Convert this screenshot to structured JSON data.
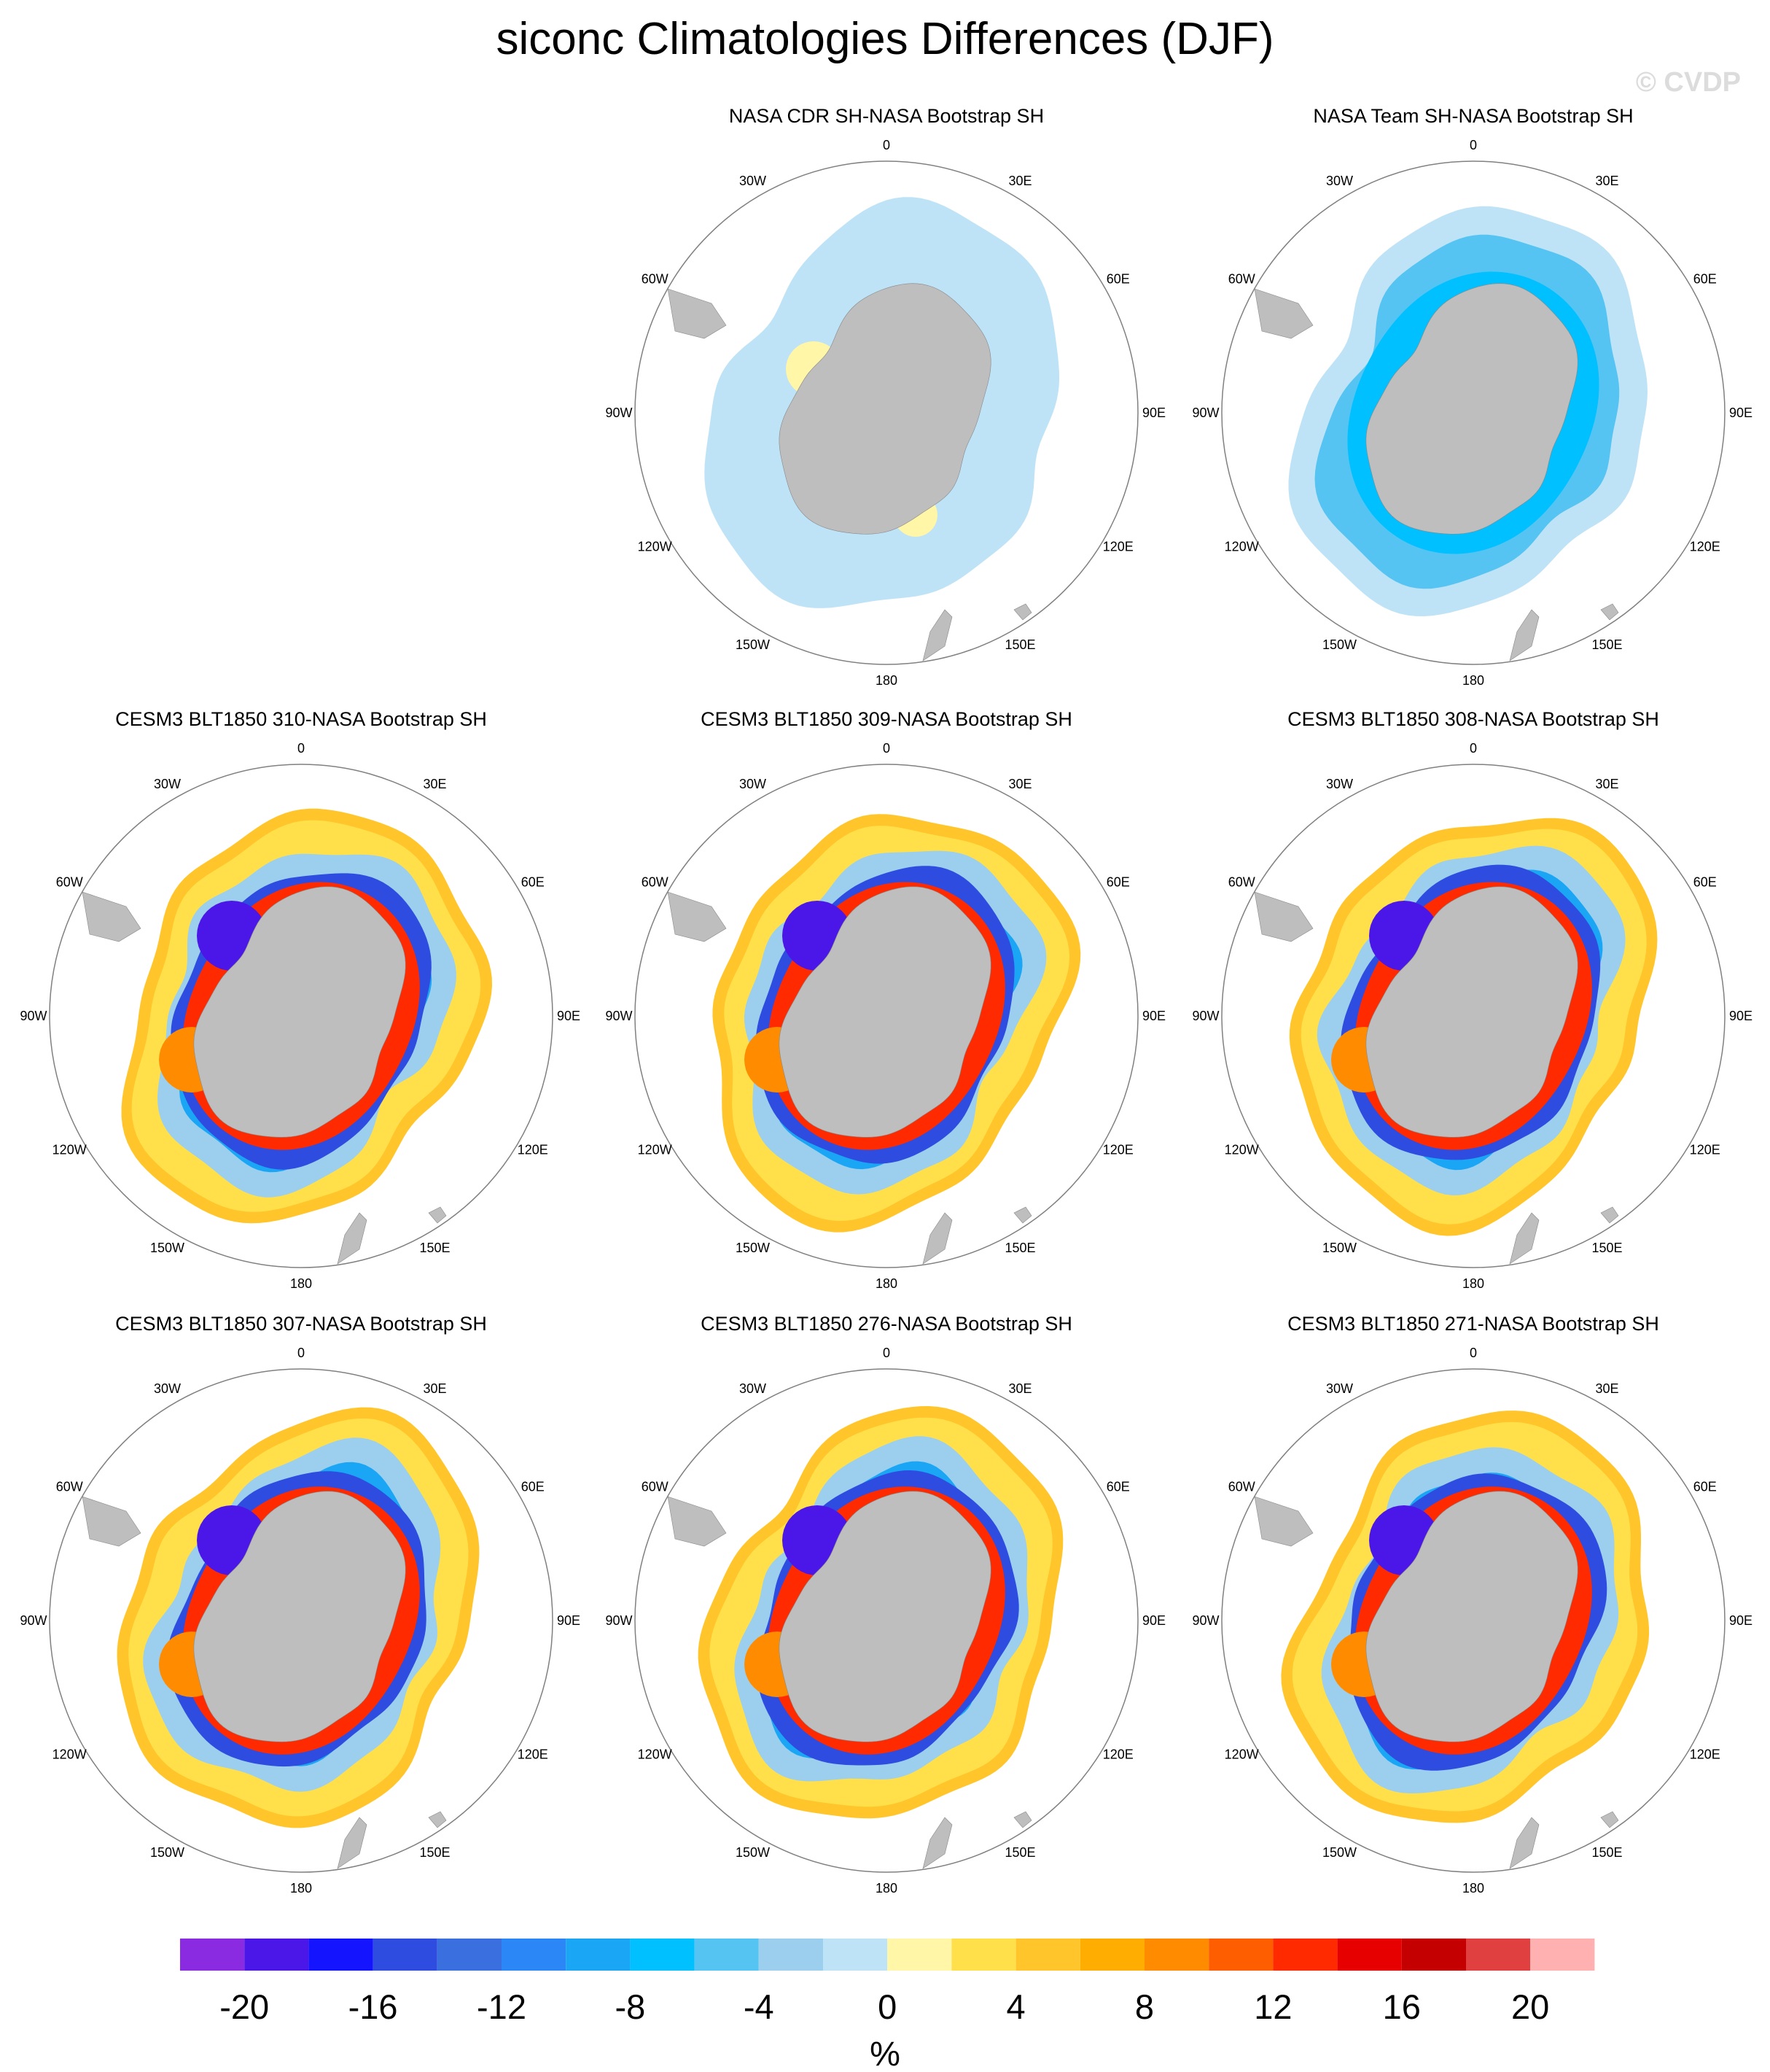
{
  "figure": {
    "title": "siconc Climatologies Differences (DJF)",
    "watermark": "© CVDP"
  },
  "longitude_labels": [
    "0",
    "30E",
    "60E",
    "90E",
    "120E",
    "150E",
    "180",
    "150W",
    "120W",
    "90W",
    "60W",
    "30W"
  ],
  "land_color": "#bebebe",
  "panels": [
    {
      "title": "NASA CDR SH-NASA Bootstrap SH",
      "row": 0,
      "col": 1,
      "pattern": "cdr"
    },
    {
      "title": "NASA Team SH-NASA Bootstrap SH",
      "row": 0,
      "col": 2,
      "pattern": "team"
    },
    {
      "title": "CESM3 BLT1850 310-NASA Bootstrap SH",
      "row": 1,
      "col": 0,
      "pattern": "model"
    },
    {
      "title": "CESM3 BLT1850 309-NASA Bootstrap SH",
      "row": 1,
      "col": 1,
      "pattern": "model"
    },
    {
      "title": "CESM3 BLT1850 308-NASA Bootstrap SH",
      "row": 1,
      "col": 2,
      "pattern": "model"
    },
    {
      "title": "CESM3 BLT1850 307-NASA Bootstrap SH",
      "row": 2,
      "col": 0,
      "pattern": "model"
    },
    {
      "title": "CESM3 BLT1850 276-NASA Bootstrap SH",
      "row": 2,
      "col": 1,
      "pattern": "model"
    },
    {
      "title": "CESM3 BLT1850 271-NASA Bootstrap SH",
      "row": 2,
      "col": 2,
      "pattern": "model"
    }
  ],
  "colorbar": {
    "colors": [
      "#8a2be2",
      "#4b17e8",
      "#1414ff",
      "#2e4de0",
      "#3a6fe0",
      "#2b87f5",
      "#1aa6f5",
      "#00c0ff",
      "#55c4f2",
      "#9ccfee",
      "#bfe3f6",
      "#fff6a8",
      "#ffe04a",
      "#ffc52a",
      "#ffad00",
      "#ff8c00",
      "#ff5e00",
      "#ff2a00",
      "#e60000",
      "#c40000",
      "#e04040",
      "#ffb0b0"
    ],
    "ticks": [
      "-20",
      "-16",
      "-12",
      "-8",
      "-4",
      "0",
      "4",
      "8",
      "12",
      "16",
      "20"
    ],
    "unit": "%"
  }
}
